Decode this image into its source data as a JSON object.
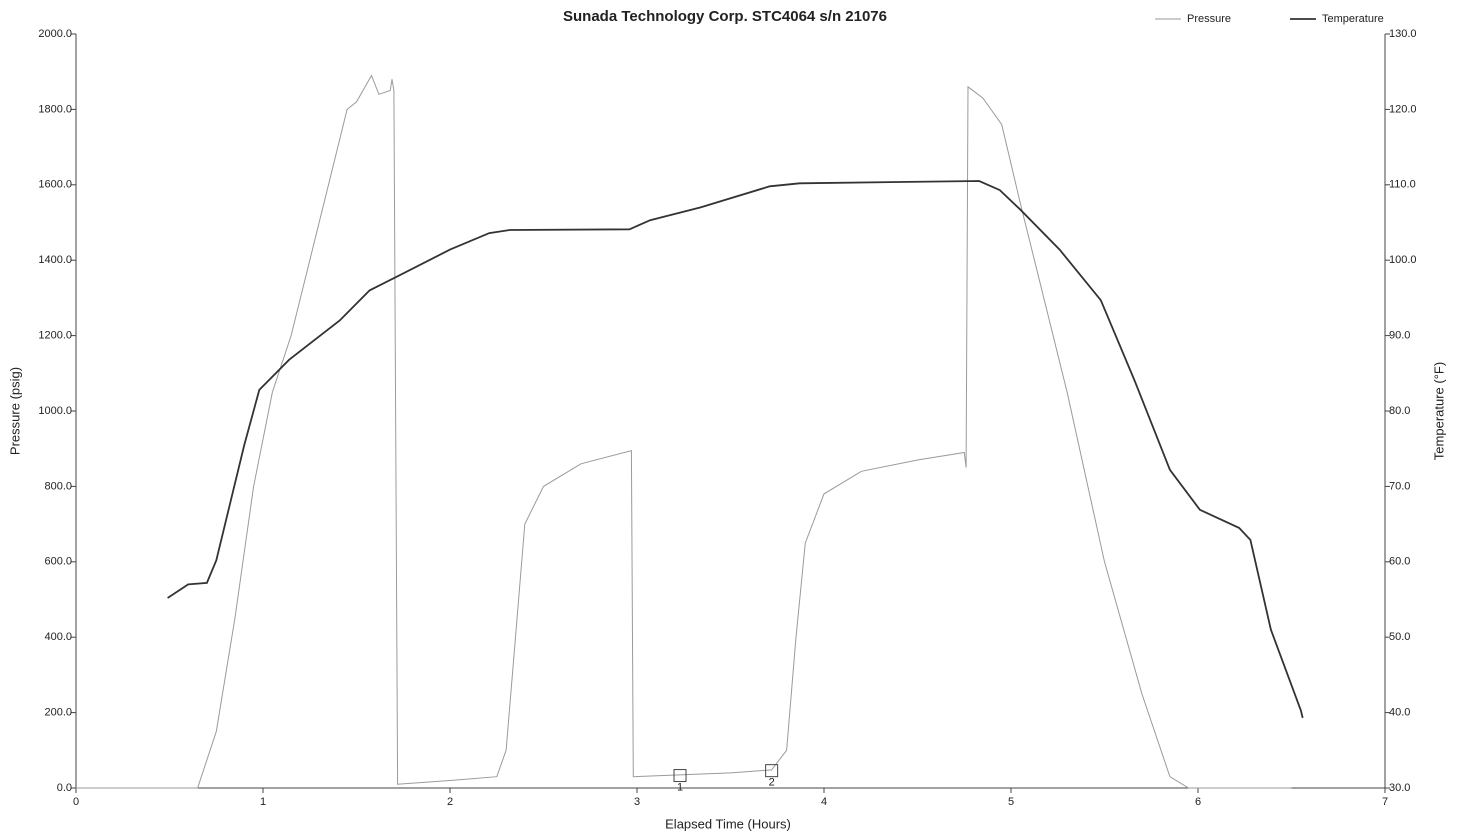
{
  "chart_data": {
    "type": "line",
    "title": "Sunada Technology Corp. STC4064 s/n 21076",
    "x_label": "Elapsed Time (Hours)",
    "y_label": "Pressure (psig)",
    "y2_label": "Temperature (°F)",
    "xlim": [
      0,
      7
    ],
    "xticks": [
      0,
      1,
      2,
      3,
      4,
      5,
      6,
      7
    ],
    "ylim": [
      0,
      2000
    ],
    "yticks": [
      {
        "value": 0,
        "label": "0.0"
      },
      {
        "value": 200,
        "label": "200.0"
      },
      {
        "value": 400,
        "label": "400.0"
      },
      {
        "value": 600,
        "label": "600.0"
      },
      {
        "value": 800,
        "label": "800.0"
      },
      {
        "value": 1000,
        "label": "1000.0"
      },
      {
        "value": 1200,
        "label": "1200.0"
      },
      {
        "value": 1400,
        "label": "1400.0"
      },
      {
        "value": 1600,
        "label": "1600.0"
      },
      {
        "value": 1800,
        "label": "1800.0"
      },
      {
        "value": 2000,
        "label": "2000.0"
      }
    ],
    "y2lim": [
      30,
      130
    ],
    "y2ticks": [
      {
        "value": 30,
        "label": "30.0"
      },
      {
        "value": 40,
        "label": "40.0"
      },
      {
        "value": 50,
        "label": "50.0"
      },
      {
        "value": 60,
        "label": "60.0"
      },
      {
        "value": 70,
        "label": "70.0"
      },
      {
        "value": 80,
        "label": "80.0"
      },
      {
        "value": 90,
        "label": "90.0"
      },
      {
        "value": 100,
        "label": "100.0"
      },
      {
        "value": 110,
        "label": "110.0"
      },
      {
        "value": 120,
        "label": "120.0"
      },
      {
        "value": 130,
        "label": "130.0"
      }
    ],
    "legend": "top-right",
    "series": [
      {
        "name": "Pressure",
        "color": "#9a9a9a",
        "x": [
          0,
          0.65,
          0.75,
          0.85,
          0.95,
          1.05,
          1.15,
          1.25,
          1.35,
          1.45,
          1.5,
          1.58,
          1.62,
          1.68,
          1.69,
          1.7,
          1.72,
          2.0,
          2.25,
          2.3,
          2.35,
          2.4,
          2.5,
          2.7,
          2.97,
          2.98,
          3.5,
          3.72,
          3.8,
          3.85,
          3.9,
          4.0,
          4.2,
          4.5,
          4.75,
          4.76,
          4.77,
          4.85,
          4.95,
          5.05,
          5.15,
          5.3,
          5.5,
          5.7,
          5.85,
          5.95,
          6.5
        ],
        "values": [
          0,
          0,
          150,
          450,
          800,
          1050,
          1200,
          1400,
          1600,
          1800,
          1820,
          1890,
          1840,
          1850,
          1880,
          1850,
          10,
          20,
          30,
          100,
          400,
          700,
          800,
          860,
          895,
          30,
          40,
          48,
          100,
          400,
          650,
          780,
          840,
          870,
          890,
          850,
          1860,
          1830,
          1760,
          1550,
          1350,
          1050,
          600,
          250,
          30,
          0,
          0
        ]
      },
      {
        "name": "Temperature",
        "color": "#333333",
        "axis": "y2",
        "x": [
          0.49,
          0.6,
          0.7,
          0.75,
          0.9,
          0.98,
          1.14,
          1.41,
          1.57,
          1.73,
          2.0,
          2.21,
          2.32,
          2.96,
          3.07,
          3.34,
          3.71,
          3.87,
          4.83,
          4.94,
          5.05,
          5.26,
          5.48,
          5.66,
          5.85,
          6.01,
          6.22,
          6.28,
          6.39,
          6.55,
          6.56
        ],
        "values": [
          55.2,
          57,
          57.2,
          60.2,
          75.5,
          82.8,
          86.8,
          92,
          96,
          98,
          101.4,
          103.6,
          104,
          104.1,
          105.3,
          107,
          109.8,
          110.2,
          110.5,
          109.3,
          106.7,
          101.4,
          94.7,
          84.1,
          72.2,
          66.9,
          64.5,
          62.9,
          51,
          40.3,
          39.3
        ]
      }
    ],
    "markers": [
      {
        "label": "1",
        "x": 3.23,
        "y": 33
      },
      {
        "label": "2",
        "x": 3.72,
        "y": 46
      }
    ]
  }
}
